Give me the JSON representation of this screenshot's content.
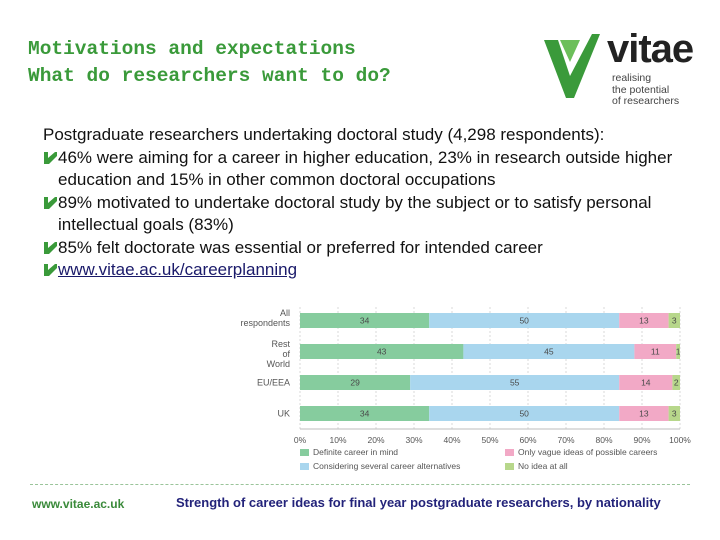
{
  "title": {
    "line1": "Motivations and expectations",
    "line2": "What do researchers want to do?"
  },
  "logo": {
    "word": "vitae",
    "tagline": [
      "realising",
      "the potential",
      "of researchers"
    ],
    "colors": {
      "mark": "#3a9a3a",
      "text": "#222222"
    }
  },
  "bullets": {
    "lead": "Postgraduate researchers undertaking doctoral study (4,298 respondents):",
    "items": [
      "46% were aiming for a career in higher education, 23% in research outside higher education and 15% in other common doctoral occupations",
      "89% motivated to undertake doctoral study by the subject or to satisfy personal intellectual goals (83%)",
      "85% felt doctorate was essential or preferred for intended career"
    ],
    "link": " www.vitae.ac.uk/careerplanning",
    "bullet_icon": "green-arrow-icon"
  },
  "chart_data": {
    "type": "bar",
    "orientation": "horizontal",
    "stacked": true,
    "categories": [
      "All respondents",
      "Rest of World",
      "EU/EEA",
      "UK"
    ],
    "series": [
      {
        "name": "Definite career in mind",
        "color": "#86cc9e",
        "values": [
          34,
          43,
          29,
          34
        ]
      },
      {
        "name": "Considering several career alternatives",
        "color": "#a9d6ee",
        "values": [
          50,
          45,
          55,
          50
        ]
      },
      {
        "name": "Only vague ideas of possible careers",
        "color": "#f2a9c6",
        "values": [
          13,
          11,
          14,
          13
        ]
      },
      {
        "name": "No idea at all",
        "color": "#b7d78b",
        "values": [
          3,
          1,
          2,
          3
        ]
      }
    ],
    "xticks": [
      "0%",
      "10%",
      "20%",
      "30%",
      "40%",
      "50%",
      "60%",
      "70%",
      "80%",
      "90%",
      "100%"
    ],
    "xlim": [
      0,
      100
    ],
    "grid": true,
    "legend_position": "bottom"
  },
  "footer": {
    "url": "www.vitae.ac.uk",
    "caption": "Strength of career ideas for final year postgraduate researchers, by nationality"
  }
}
